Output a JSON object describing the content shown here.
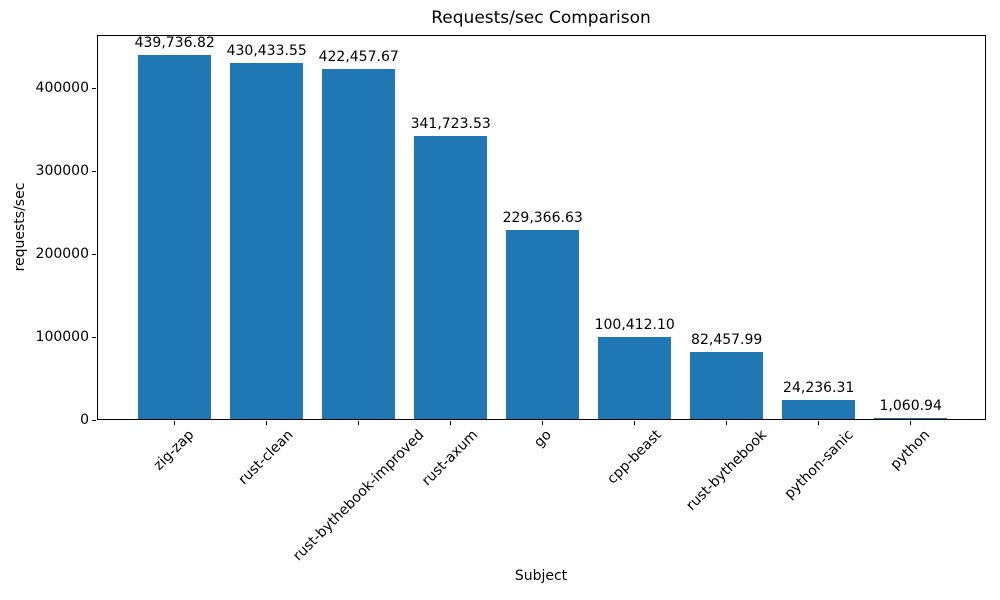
{
  "chart_data": {
    "type": "bar",
    "title": "Requests/sec Comparison",
    "xlabel": "Subject",
    "ylabel": "requests/sec",
    "categories": [
      "zig-zap",
      "rust-clean",
      "rust-bythebook-improved",
      "rust-axum",
      "go",
      "cpp-beast",
      "rust-bythebook",
      "python-sanic",
      "python"
    ],
    "values": [
      439736.82,
      430433.55,
      422457.67,
      341723.53,
      229366.63,
      100412.1,
      82457.99,
      24236.31,
      1060.94
    ],
    "value_labels": [
      "439,736.82",
      "430,433.55",
      "422,457.67",
      "341,723.53",
      "229,366.63",
      "100,412.10",
      "82,457.99",
      "24,236.31",
      "1,060.94"
    ],
    "yticks": [
      0,
      100000,
      200000,
      300000,
      400000
    ],
    "ytick_labels": [
      "0",
      "100000",
      "200000",
      "300000",
      "400000"
    ],
    "ylim": [
      0,
      464000
    ],
    "bar_color": "#1f77b4",
    "axis_color": "#000000",
    "text_color": "#000000",
    "grid": false,
    "legend": "none"
  }
}
